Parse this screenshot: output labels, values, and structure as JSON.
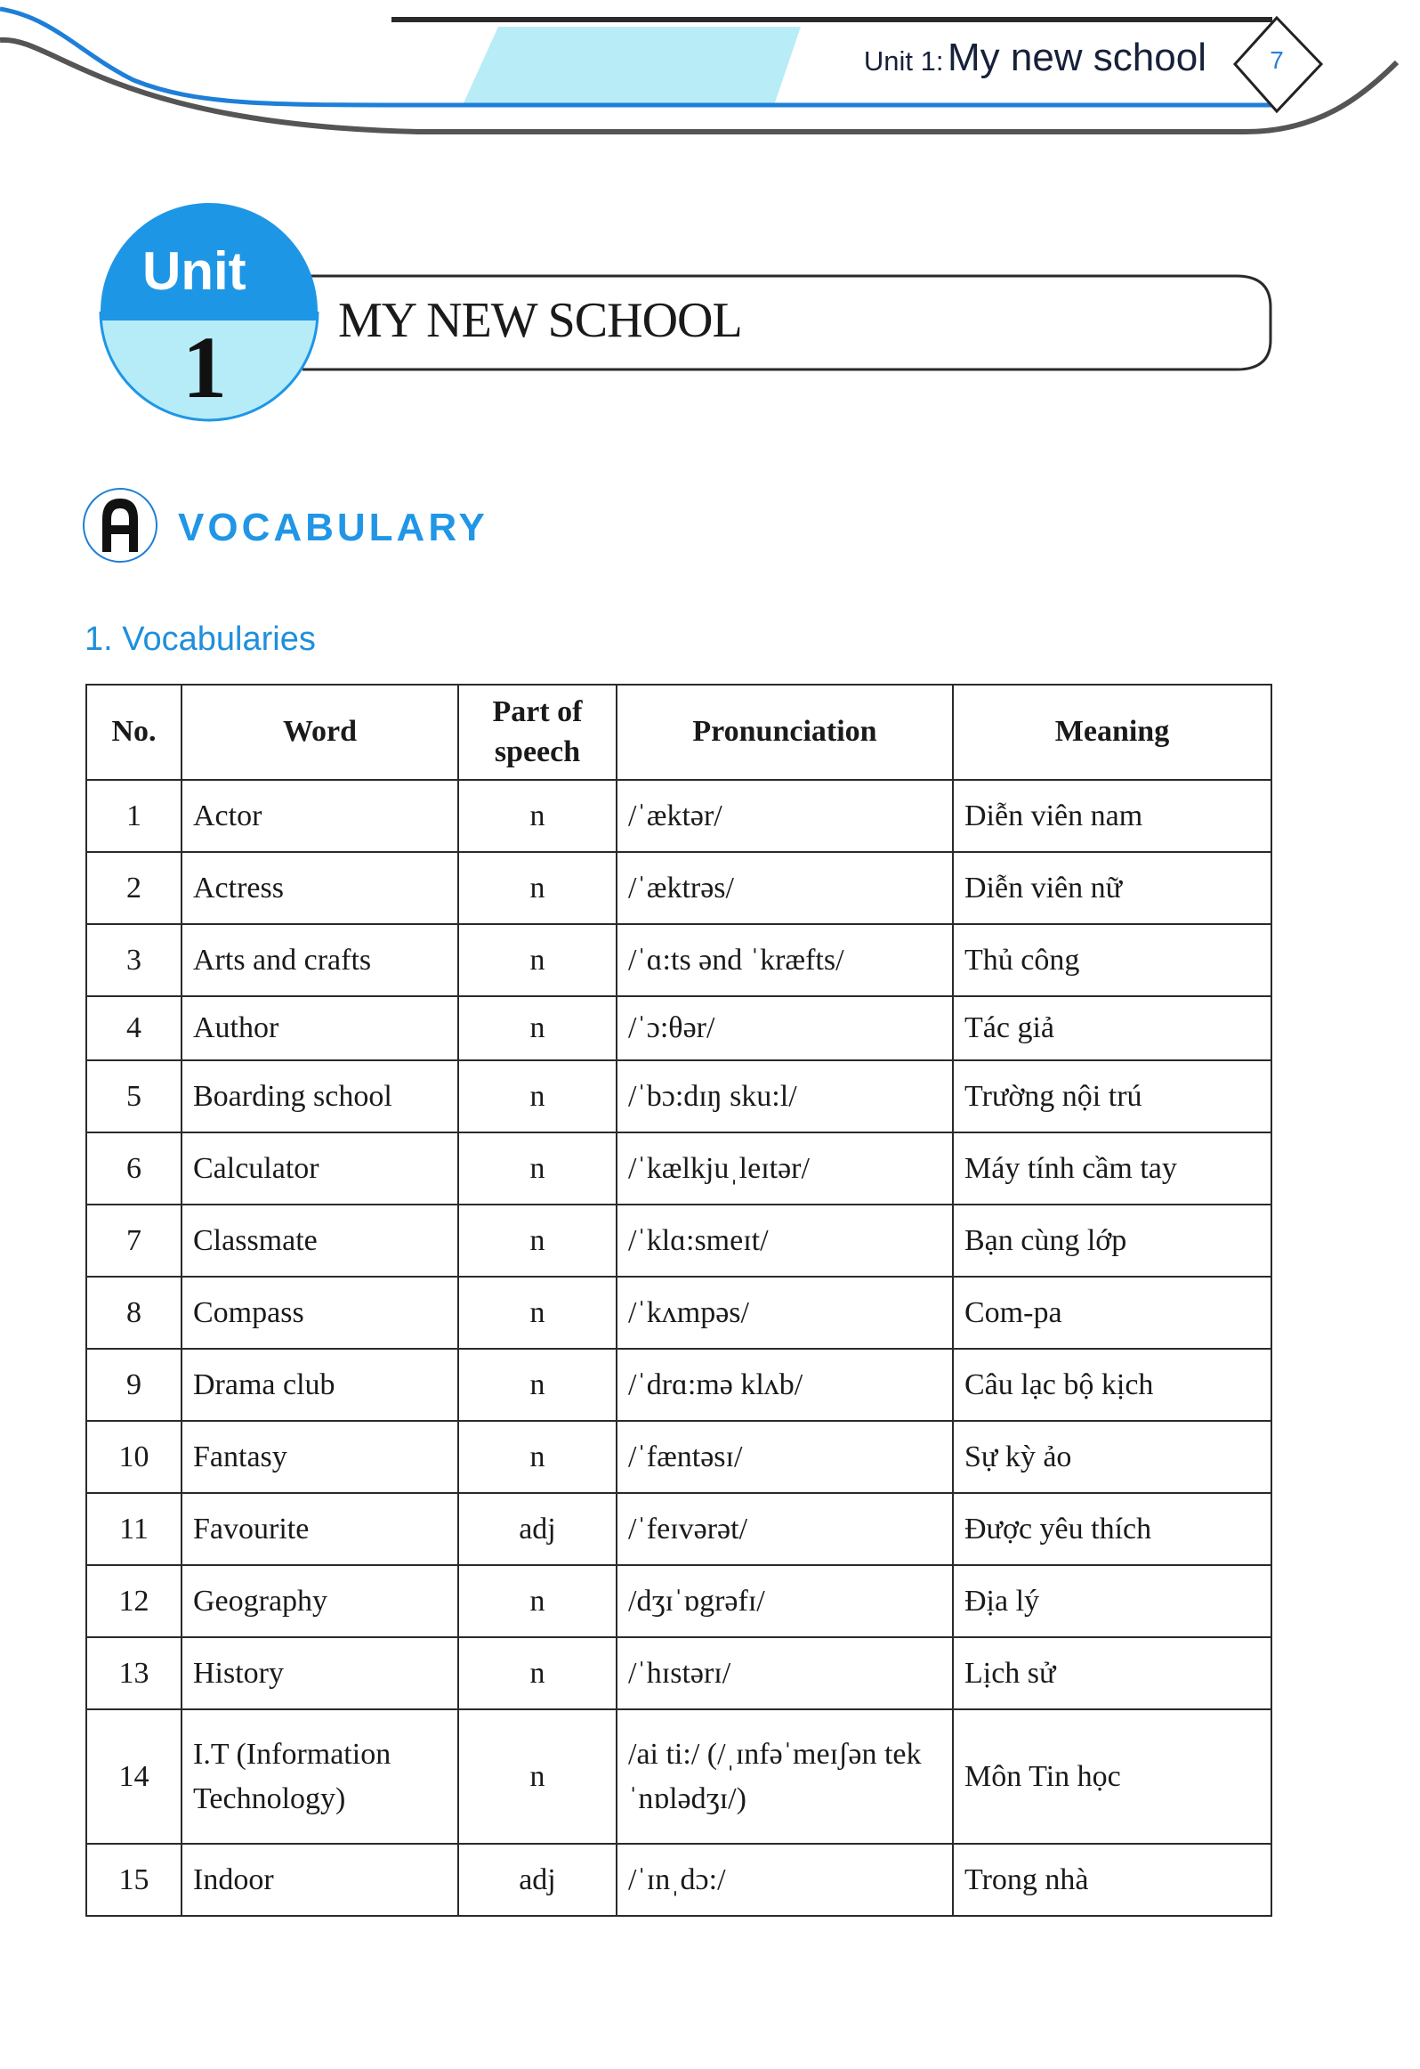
{
  "header": {
    "running_title_prefix": "Unit 1:",
    "running_title_main": "My new school",
    "page_number": "7",
    "colors": {
      "blue": "#1e7fd8",
      "light_blue": "#b8ecf7",
      "dark": "#2a2a2a"
    }
  },
  "unit": {
    "word": "Unit",
    "number": "1",
    "title": "MY NEW SCHOOL",
    "colors": {
      "top": "#1e96e6",
      "bottom": "#b6ecf8"
    }
  },
  "section": {
    "icon_letter": "A",
    "title": "VOCABULARY",
    "subtitle": "1. Vocabularies"
  },
  "table": {
    "headers": [
      "No.",
      "Word",
      "Part of speech",
      "Pronunciation",
      "Meaning"
    ],
    "rows": [
      {
        "no": "1",
        "word": "Actor",
        "pos": "n",
        "pron": "/ˈæktər/",
        "meaning": "Diễn viên nam"
      },
      {
        "no": "2",
        "word": "Actress",
        "pos": "n",
        "pron": "/ˈæktrəs/",
        "meaning": "Diễn viên nữ"
      },
      {
        "no": "3",
        "word": "Arts and crafts",
        "pos": "n",
        "pron": "/ˈɑ:ts ənd ˈkræfts/",
        "meaning": "Thủ công"
      },
      {
        "no": "4",
        "word": "Author",
        "pos": "n",
        "pron": "/ˈɔ:θər/",
        "meaning": "Tác giả"
      },
      {
        "no": "5",
        "word": "Boarding school",
        "pos": "n",
        "pron": "/ˈbɔ:dɪŋ sku:l/",
        "meaning": "Trường nội trú"
      },
      {
        "no": "6",
        "word": "Calculator",
        "pos": "n",
        "pron": "/ˈkælkjuˌleɪtər/",
        "meaning": "Máy tính cầm tay"
      },
      {
        "no": "7",
        "word": "Classmate",
        "pos": "n",
        "pron": "/ˈklɑ:smeɪt/",
        "meaning": "Bạn cùng lớp"
      },
      {
        "no": "8",
        "word": "Compass",
        "pos": "n",
        "pron": "/ˈkʌmpəs/",
        "meaning": "Com-pa"
      },
      {
        "no": "9",
        "word": "Drama club",
        "pos": "n",
        "pron": "/ˈdrɑ:mə klʌb/",
        "meaning": "Câu lạc bộ kịch"
      },
      {
        "no": "10",
        "word": "Fantasy",
        "pos": "n",
        "pron": "/ˈfæntəsɪ/",
        "meaning": "Sự kỳ ảo"
      },
      {
        "no": "11",
        "word": "Favourite",
        "pos": "adj",
        "pron": "/ˈfeɪvərət/",
        "meaning": "Được yêu thích"
      },
      {
        "no": "12",
        "word": "Geography",
        "pos": "n",
        "pron": "/dʒɪˈɒgrəfɪ/",
        "meaning": "Địa lý"
      },
      {
        "no": "13",
        "word": "History",
        "pos": "n",
        "pron": "/ˈhɪstərɪ/",
        "meaning": "Lịch sử"
      },
      {
        "no": "14",
        "word": "I.T (Information Technology)",
        "pos": "n",
        "pron": "/ai ti:/ (/ˌɪnfəˈmeɪʃən tekˈnɒlədʒɪ/)",
        "meaning": "Môn Tin học"
      },
      {
        "no": "15",
        "word": "Indoor",
        "pos": "adj",
        "pron": "/ˈɪnˌdɔ:/",
        "meaning": "Trong nhà"
      }
    ]
  }
}
